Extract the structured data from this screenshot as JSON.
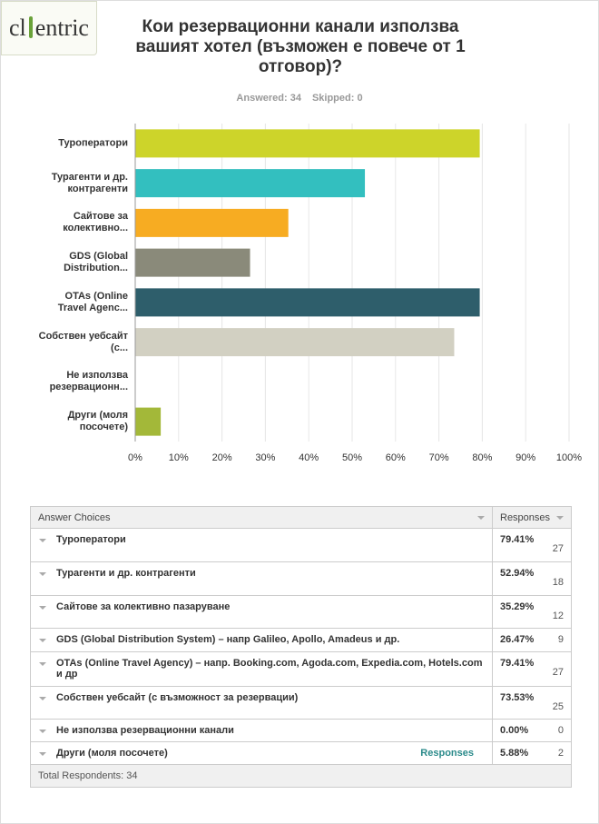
{
  "logo": {
    "left": "cl",
    "right": "entric"
  },
  "chart_data": {
    "type": "bar",
    "orientation": "horizontal",
    "title": "Кои резервационни канали използва вашият хотел (възможен е повече от 1 отговор)?",
    "stats": [
      "Answered: 34",
      "Skipped: 0"
    ],
    "categories": [
      "Туроператори",
      "Турагенти и др. контрагенти",
      "Сайтове за колективно...",
      "GDS (Global Distribution...",
      "OTAs (Online Travel Agenc...",
      "Собствен уебсайт (с...",
      "Не използва резервационн...",
      "Други (моля посочете)"
    ],
    "values": [
      79.41,
      52.94,
      35.29,
      26.47,
      79.41,
      73.53,
      0,
      5.88
    ],
    "colors": [
      "#cdd42a",
      "#33bfbf",
      "#f7ac22",
      "#8a8a7a",
      "#2e5e6b",
      "#d2d0c2",
      "#cccccc",
      "#a3b839"
    ],
    "xlim": [
      0,
      100
    ],
    "xticks": [
      {
        "value": 0,
        "label": "0%"
      },
      {
        "value": 10,
        "label": "10%"
      },
      {
        "value": 20,
        "label": "20%"
      },
      {
        "value": 30,
        "label": "30%"
      },
      {
        "value": 40,
        "label": "40%"
      },
      {
        "value": 50,
        "label": "50%"
      },
      {
        "value": 60,
        "label": "60%"
      },
      {
        "value": 70,
        "label": "70%"
      },
      {
        "value": 80,
        "label": "80%"
      },
      {
        "value": 90,
        "label": "90%"
      },
      {
        "value": 100,
        "label": "100%"
      }
    ],
    "grid": true
  },
  "table": {
    "headers": [
      "Answer Choices",
      "Responses"
    ],
    "rows": [
      [
        "Туроператори",
        "79.41%",
        27
      ],
      [
        "Турагенти и др. контрагенти",
        "52.94%",
        18
      ],
      [
        "Сайтове за колективно пазаруване",
        "35.29%",
        12
      ],
      [
        "GDS (Global Distribution System) – напр Galileo, Apollo, Amadeus и др.",
        "26.47%",
        9
      ],
      [
        "OTAs (Online Travel Agency) – напр. Booking.com, Agoda.com, Expedia.com, Hotels.com и др",
        "79.41%",
        27
      ],
      [
        "Собствен уебсайт (с възможност за резервации)",
        "73.53%",
        25
      ],
      [
        "Не използва резервационни канали",
        "0.00%",
        0
      ],
      [
        "Други (моля посочете)",
        "5.88%",
        2
      ]
    ],
    "link": "Responses",
    "footer": "Total Respondents: 34"
  }
}
